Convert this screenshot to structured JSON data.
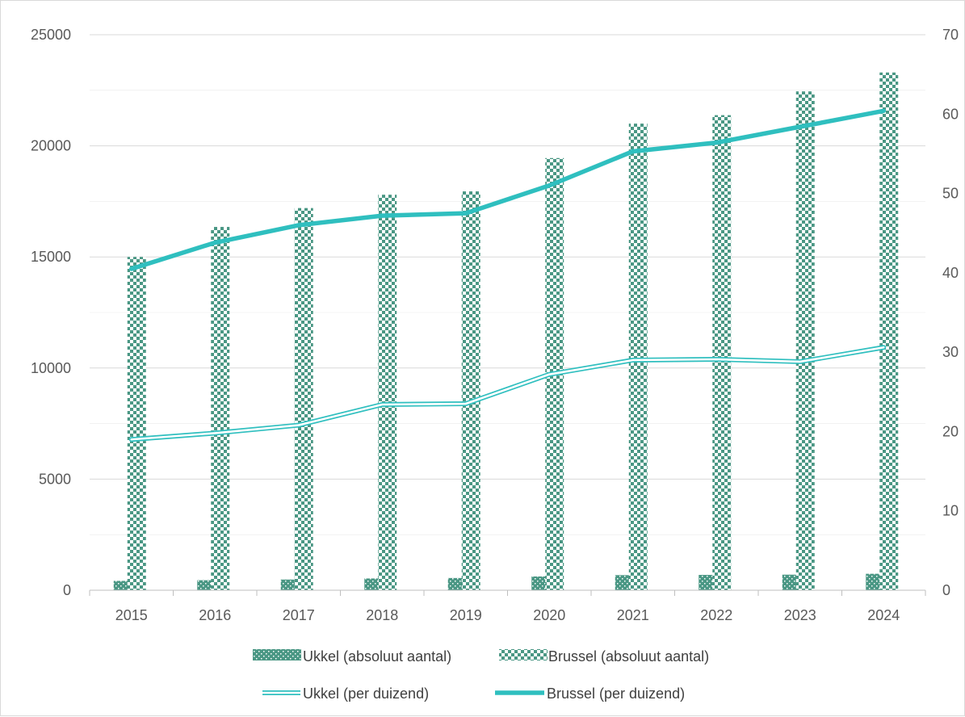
{
  "chart_data": {
    "type": "bar",
    "categories": [
      "2015",
      "2016",
      "2017",
      "2018",
      "2019",
      "2020",
      "2021",
      "2022",
      "2023",
      "2024"
    ],
    "series": [
      {
        "name": "Ukkel (absoluut aantal)",
        "kind": "bar",
        "axis": "left",
        "values": [
          420,
          450,
          480,
          530,
          550,
          620,
          680,
          690,
          700,
          740
        ]
      },
      {
        "name": "Brussel (absoluut aantal)",
        "kind": "bar",
        "axis": "left",
        "values": [
          15000,
          16350,
          17200,
          17800,
          17950,
          19450,
          21000,
          21380,
          22450,
          23300
        ]
      },
      {
        "name": "Ukkel (per duizend)",
        "kind": "line",
        "axis": "right",
        "values": [
          19.0,
          19.8,
          20.8,
          23.4,
          23.5,
          27.2,
          29.0,
          29.1,
          28.8,
          30.6
        ]
      },
      {
        "name": "Brussel (per duizend)",
        "kind": "line",
        "axis": "right",
        "values": [
          40.5,
          43.8,
          46.0,
          47.2,
          47.5,
          51.0,
          55.3,
          56.4,
          58.4,
          60.4
        ]
      }
    ],
    "y_left": {
      "ylim": [
        0,
        25000
      ],
      "ticks": [
        "0",
        "5000",
        "10000",
        "15000",
        "20000",
        "25000"
      ]
    },
    "y_right": {
      "ylim": [
        0,
        70
      ],
      "ticks": [
        "0",
        "10",
        "20",
        "30",
        "40",
        "50",
        "60",
        "70"
      ]
    },
    "legend_placement": "bottom",
    "grid": true,
    "colors": {
      "bar": "#4a9784",
      "line": "#2fbfbf",
      "axis": "#bfbfbf",
      "grid": "#d9d9d9"
    }
  }
}
